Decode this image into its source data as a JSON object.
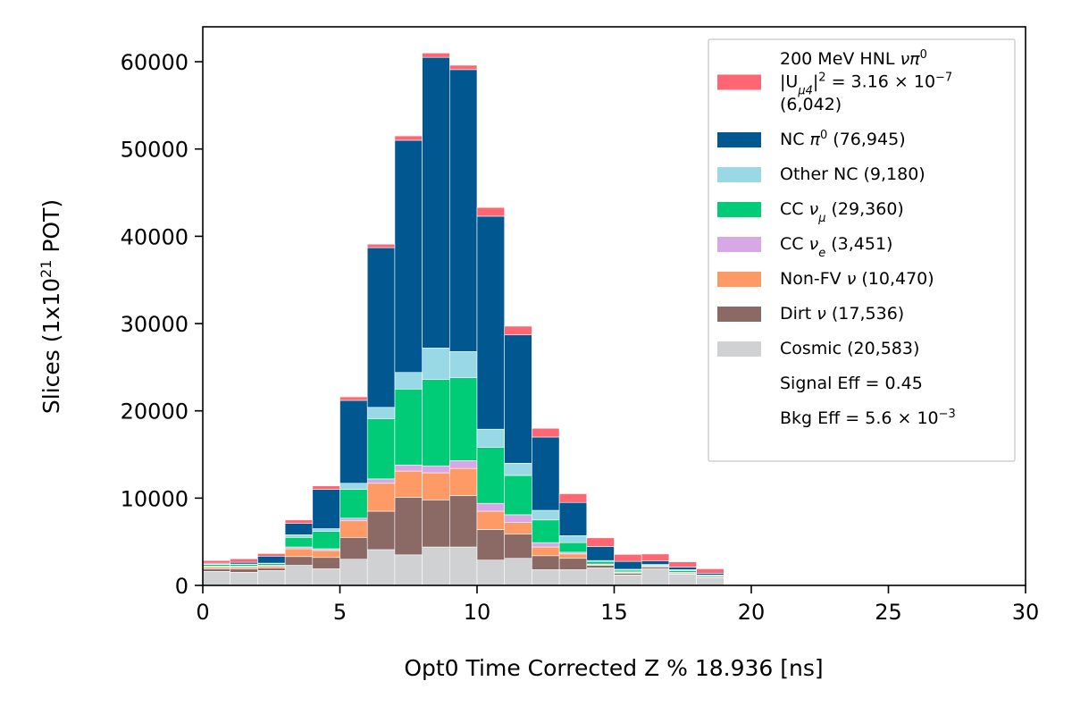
{
  "chart_data": {
    "type": "bar",
    "stacked": true,
    "xlabel": "Opt0 Time Corrected Z % 18.936 [ns]",
    "ylabel_parts": {
      "base": "Slices (1x10",
      "sup": "21",
      "end": " POT)"
    },
    "xlim": [
      0,
      30
    ],
    "ylim": [
      0,
      64000
    ],
    "x_ticks": [
      0,
      5,
      10,
      15,
      20,
      25,
      30
    ],
    "y_ticks": [
      0,
      10000,
      20000,
      30000,
      40000,
      50000,
      60000
    ],
    "bin_width": 1,
    "bin_left_edges": [
      0,
      1,
      2,
      3,
      4,
      5,
      6,
      7,
      8,
      9,
      10,
      11,
      12,
      13,
      14,
      15,
      16,
      17,
      18
    ],
    "grid": false,
    "legend_position": "top-right",
    "series": [
      {
        "name": "Cosmic (20,583)",
        "color": "#d0d1d3",
        "values": [
          1600,
          1500,
          1700,
          2300,
          1900,
          3000,
          4100,
          3500,
          4400,
          4400,
          2900,
          3100,
          1800,
          1800,
          2000,
          1200,
          1900,
          1300,
          900
        ]
      },
      {
        "name": "Dirt ν (17,536)",
        "color": "#8b6a65",
        "values": [
          300,
          400,
          300,
          1000,
          1300,
          2500,
          4400,
          6600,
          5400,
          5900,
          3500,
          2800,
          1600,
          1300,
          300,
          200,
          200,
          100,
          100
        ]
      },
      {
        "name": "Non-FV ν (10,470)",
        "color": "#fe9a66",
        "values": [
          200,
          200,
          200,
          900,
          800,
          1900,
          3200,
          3000,
          3100,
          3100,
          2100,
          1300,
          1000,
          500,
          100,
          100,
          100,
          100,
          0
        ]
      },
      {
        "name": "CC νe (3,451)",
        "color": "#d8a8e6",
        "values": [
          100,
          100,
          100,
          200,
          200,
          300,
          500,
          700,
          800,
          900,
          900,
          900,
          500,
          200,
          50,
          50,
          0,
          0,
          0
        ]
      },
      {
        "name": "CC νμ (29,360)",
        "color": "#00cc78",
        "values": [
          200,
          200,
          200,
          1100,
          2000,
          3300,
          6900,
          8700,
          9900,
          9500,
          6400,
          4500,
          2600,
          1100,
          300,
          200,
          100,
          200,
          100
        ]
      },
      {
        "name": "Other NC (9,180)",
        "color": "#99d9e6",
        "values": [
          50,
          50,
          50,
          300,
          300,
          700,
          1300,
          1900,
          3600,
          3000,
          2100,
          1400,
          1100,
          800,
          100,
          100,
          100,
          100,
          100
        ]
      },
      {
        "name": "NC π0 (76,945)",
        "color": "#015890",
        "values": [
          100,
          200,
          800,
          1300,
          4500,
          9500,
          18300,
          26600,
          33300,
          32300,
          24400,
          14700,
          8400,
          3800,
          1600,
          900,
          400,
          300,
          200
        ]
      },
      {
        "name": "HNL signal (6,042)",
        "color": "#fe6673",
        "values": [
          300,
          400,
          300,
          400,
          400,
          400,
          400,
          500,
          500,
          500,
          1000,
          1000,
          1000,
          1000,
          1000,
          800,
          800,
          600,
          500
        ]
      }
    ],
    "legend": [
      {
        "key": "hnl",
        "color": "#fe6673",
        "lines": [
          {
            "t": [
              {
                "s": "200 MeV HNL "
              },
              {
                "s": "νπ",
                "i": true
              },
              {
                "s": "0",
                "sup": true
              }
            ]
          },
          {
            "t": [
              {
                "s": "|U"
              },
              {
                "s": "μ4",
                "sub": true,
                "i": true
              },
              {
                "s": "|"
              },
              {
                "s": "2",
                "sup": true
              },
              {
                "s": " = 3.16 × 10"
              },
              {
                "s": "−7",
                "sup": true
              }
            ]
          },
          {
            "t": [
              {
                "s": " (6,042)"
              }
            ]
          }
        ]
      },
      {
        "key": "ncpi0",
        "color": "#015890",
        "lines": [
          {
            "t": [
              {
                "s": "NC "
              },
              {
                "s": "π",
                "i": true
              },
              {
                "s": "0",
                "sup": true
              },
              {
                "s": " (76,945)"
              }
            ]
          }
        ]
      },
      {
        "key": "othernc",
        "color": "#99d9e6",
        "lines": [
          {
            "t": [
              {
                "s": "Other NC (9,180)"
              }
            ]
          }
        ]
      },
      {
        "key": "ccnumu",
        "color": "#00cc78",
        "lines": [
          {
            "t": [
              {
                "s": "CC "
              },
              {
                "s": "ν",
                "i": true
              },
              {
                "s": "μ",
                "sub": true,
                "i": true
              },
              {
                "s": " (29,360)"
              }
            ]
          }
        ]
      },
      {
        "key": "ccnue",
        "color": "#d8a8e6",
        "lines": [
          {
            "t": [
              {
                "s": "CC "
              },
              {
                "s": "ν",
                "i": true
              },
              {
                "s": "e",
                "sub": true,
                "i": true
              },
              {
                "s": " (3,451)"
              }
            ]
          }
        ]
      },
      {
        "key": "nonfv",
        "color": "#fe9a66",
        "lines": [
          {
            "t": [
              {
                "s": "Non-FV "
              },
              {
                "s": "ν",
                "i": true
              },
              {
                "s": " (10,470)"
              }
            ]
          }
        ]
      },
      {
        "key": "dirt",
        "color": "#8b6a65",
        "lines": [
          {
            "t": [
              {
                "s": "Dirt "
              },
              {
                "s": "ν",
                "i": true
              },
              {
                "s": " (17,536)"
              }
            ]
          }
        ]
      },
      {
        "key": "cosmic",
        "color": "#d0d1d3",
        "lines": [
          {
            "t": [
              {
                "s": "Cosmic (20,583)"
              }
            ]
          }
        ]
      },
      {
        "key": "sigeff",
        "color": null,
        "lines": [
          {
            "t": [
              {
                "s": "Signal Eff = 0.45"
              }
            ]
          }
        ]
      },
      {
        "key": "bkgeff",
        "color": null,
        "lines": [
          {
            "t": [
              {
                "s": "Bkg Eff = 5.6 × 10"
              },
              {
                "s": "−3",
                "sup": true
              }
            ]
          }
        ]
      }
    ]
  }
}
